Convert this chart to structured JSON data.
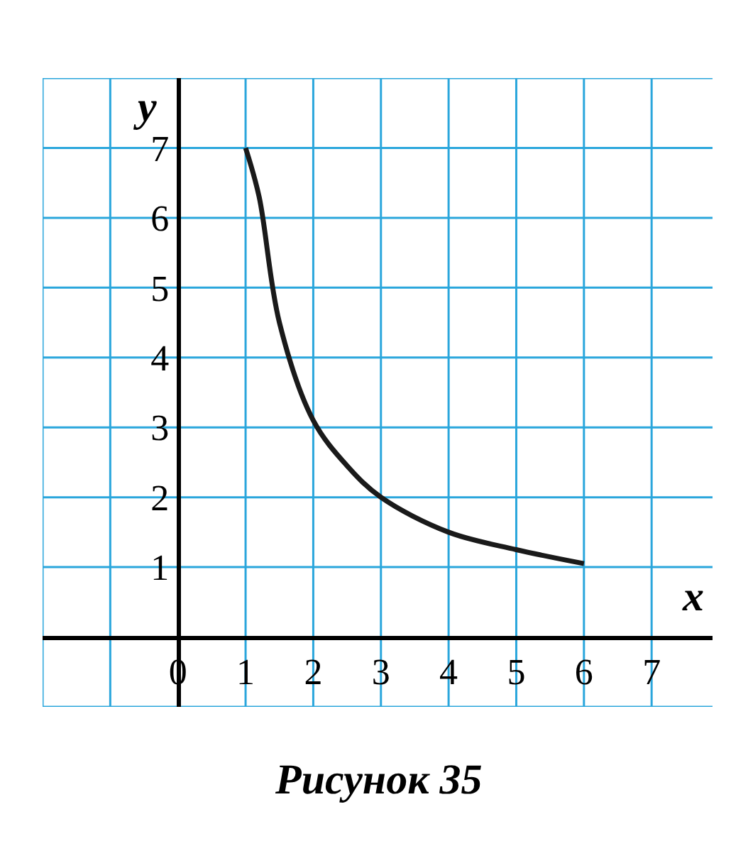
{
  "chart_data": {
    "type": "line",
    "xlabel": "x",
    "ylabel": "y",
    "x": [
      1,
      1.2,
      1.5,
      2,
      2.5,
      3,
      4,
      5,
      6
    ],
    "series": [
      {
        "color": "#1a1a1a",
        "values": [
          7,
          6.3,
          4.5,
          3.1,
          2.45,
          2.0,
          1.5,
          1.25,
          1.05
        ]
      }
    ],
    "xlim": [
      -2,
      7.9
    ],
    "ylim": [
      -1,
      8
    ],
    "xticks": [
      0,
      1,
      2,
      3,
      4,
      5,
      6,
      7
    ],
    "yticks": [
      1,
      2,
      3,
      4,
      5,
      6,
      7
    ],
    "grid": true,
    "marker": "none",
    "line_style": "solid",
    "annotations": [
      "Рисунок 35"
    ]
  }
}
